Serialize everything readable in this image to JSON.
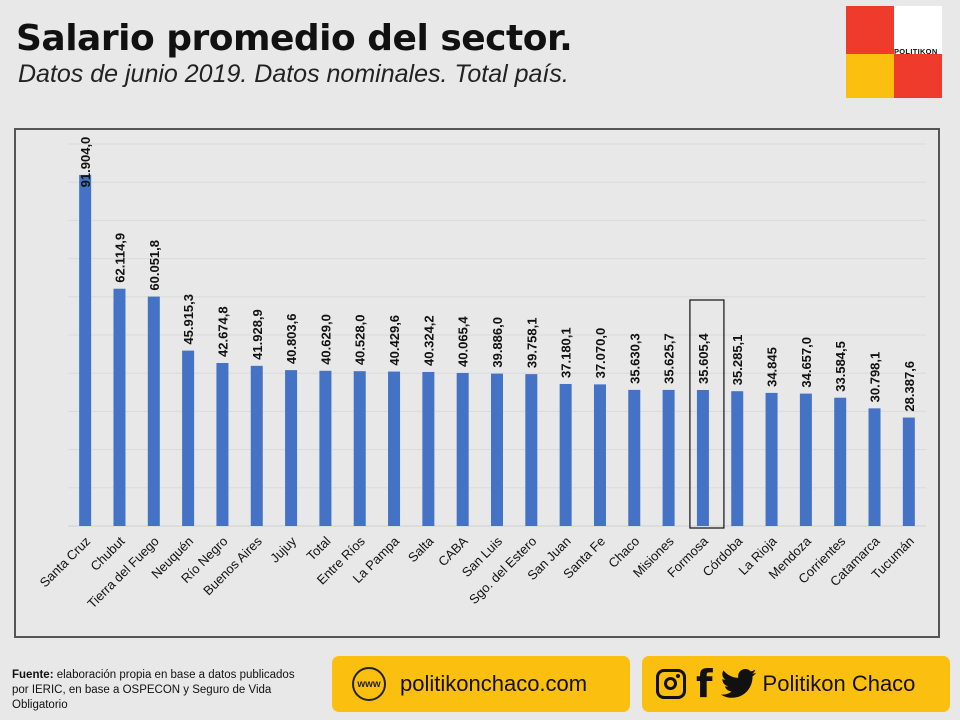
{
  "header": {
    "title": "Salario promedio del sector.",
    "subtitle": "Datos de junio 2019. Datos nominales. Total país.",
    "logo_text": "POLITIKON"
  },
  "colors": {
    "bar": "#4472c4",
    "logo_red": "#ef3b2c",
    "logo_yellow": "#fbbf10",
    "highlight_border": "#111111"
  },
  "chart_data": {
    "type": "bar",
    "categories": [
      "Santa Cruz",
      "Chubut",
      "Tierra del Fuego",
      "Neuquén",
      "Río Negro",
      "Buenos Aires",
      "Jujuy",
      "Total",
      "Entre Ríos",
      "La Pampa",
      "Salta",
      "CABA",
      "San Luis",
      "Sgo. del Estero",
      "San Juan",
      "Santa Fe",
      "Chaco",
      "Misiones",
      "Formosa",
      "Córdoba",
      "La Rioja",
      "Mendoza",
      "Corrientes",
      "Catamarca",
      "Tucumán"
    ],
    "values": [
      91904.0,
      62114.9,
      60051.8,
      45915.3,
      42674.8,
      41928.9,
      40803.6,
      40629.0,
      40528.0,
      40429.6,
      40324.2,
      40065.4,
      39886.0,
      39758.1,
      37180.1,
      37070.0,
      35630.3,
      35625.7,
      35605.4,
      35285.1,
      34845,
      34657.0,
      33584.5,
      30798.1,
      28387.6
    ],
    "labels": [
      "91.904,0",
      "62.114,9",
      "60.051,8",
      "45.915,3",
      "42.674,8",
      "41.928,9",
      "40.803,6",
      "40.629,0",
      "40.528,0",
      "40.429,6",
      "40.324,2",
      "40.065,4",
      "39.886,0",
      "39.758,1",
      "37.180,1",
      "37.070,0",
      "35.630,3",
      "35.625,7",
      "35.605,4",
      "35.285,1",
      "34.845",
      "34.657,0",
      "33.584,5",
      "30.798,1",
      "28.387,6"
    ],
    "highlighted": "Formosa",
    "ylim": [
      0,
      100000
    ],
    "grid": true,
    "title": "",
    "xlabel": "",
    "ylabel": ""
  },
  "footer": {
    "source_label": "Fuente:",
    "source_text": "elaboración propia en base a datos publicados por IERIC, en base a OSPECON y Seguro de Vida Obligatorio",
    "www_icon_text": "www",
    "website": "politikonchaco.com",
    "social_name": "Politikon Chaco",
    "icons": [
      "instagram-icon",
      "facebook-icon",
      "twitter-icon"
    ]
  }
}
